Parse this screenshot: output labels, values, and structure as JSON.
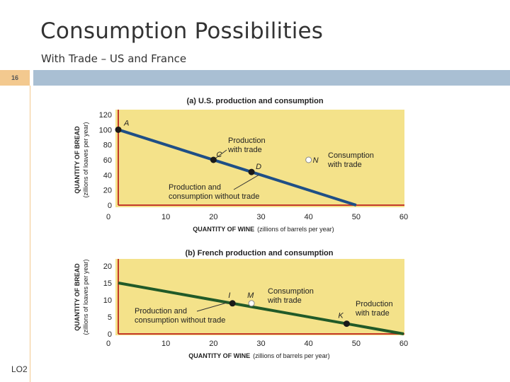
{
  "slide": {
    "title": "Consumption Possibilities",
    "subtitle": "With Trade – US and France",
    "page_number": "16",
    "lo_label": "LO2"
  },
  "colors": {
    "chart_bg": "#f4e28a",
    "us_line": "#1f4f86",
    "france_line": "#215a28",
    "axis_red": "#c43a2a",
    "header_bar": "#a9bfd3",
    "number_tab": "#f3c98f"
  },
  "chart_data": [
    {
      "type": "line",
      "title": "(a) U.S. production and consumption",
      "xlabel": "QUANTITY OF WINE",
      "xlabel_unit": "(zillions of barrels per year)",
      "ylabel": "QUANTITY OF BREAD",
      "ylabel_unit": "(zillions of loaves per year)",
      "xlim": [
        0,
        60
      ],
      "ylim": [
        0,
        120
      ],
      "x_ticks": [
        0,
        10,
        20,
        30,
        40,
        50,
        60
      ],
      "y_ticks": [
        0,
        20,
        40,
        60,
        80,
        100,
        120
      ],
      "series": [
        {
          "x": [
            0,
            50
          ],
          "y": [
            100,
            0
          ]
        }
      ],
      "points": [
        {
          "label": "A",
          "x": 0,
          "y": 100,
          "filled": true
        },
        {
          "label": "C",
          "x": 20,
          "y": 60,
          "filled": true
        },
        {
          "label": "D",
          "x": 28,
          "y": 44,
          "filled": true
        },
        {
          "label": "N",
          "x": 40,
          "y": 60,
          "filled": false
        }
      ],
      "annotations": [
        {
          "lines": [
            "Production",
            "with trade"
          ],
          "target": "C"
        },
        {
          "lines": [
            "Consumption",
            "with trade"
          ],
          "target": "N"
        },
        {
          "lines": [
            "Production and",
            "consumption without trade"
          ],
          "target": "D"
        }
      ]
    },
    {
      "type": "line",
      "title": "(b) French production and consumption",
      "xlabel": "QUANTITY OF WINE",
      "xlabel_unit": "(zillions of barrels per year)",
      "ylabel": "QUANTITY OF BREAD",
      "ylabel_unit": "(zillions of loaves per year)",
      "xlim": [
        0,
        60
      ],
      "ylim": [
        0,
        20
      ],
      "x_ticks": [
        0,
        10,
        20,
        30,
        40,
        50,
        60
      ],
      "y_ticks": [
        0,
        5,
        10,
        15,
        20
      ],
      "series": [
        {
          "x": [
            0,
            60
          ],
          "y": [
            15,
            0
          ]
        }
      ],
      "points": [
        {
          "label": "I",
          "x": 24,
          "y": 9,
          "filled": true
        },
        {
          "label": "M",
          "x": 28,
          "y": 9,
          "filled": false
        },
        {
          "label": "K",
          "x": 48,
          "y": 3,
          "filled": true
        }
      ],
      "annotations": [
        {
          "lines": [
            "Consumption",
            "with trade"
          ],
          "target": "M"
        },
        {
          "lines": [
            "Production",
            "with trade"
          ],
          "target": "K"
        },
        {
          "lines": [
            "Production and",
            "consumption without trade"
          ],
          "target": "I"
        }
      ]
    }
  ]
}
